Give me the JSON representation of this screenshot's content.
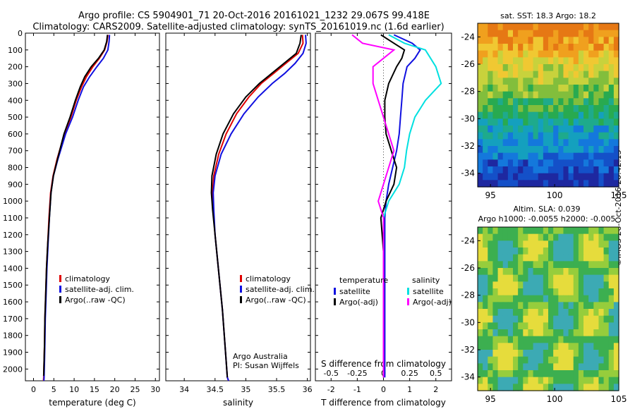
{
  "header": {
    "line1": "Argo profile: CS 5904901_71 20-Oct-2016 20161021_1232 29.067S 99.418E",
    "line2": "Climatology: CARS2009. Satellite-adjusted climatology: synTS_20161019.nc (1.6d earlier)"
  },
  "credit": "©IMOS 26-Oct-2016 20:42:13",
  "colors": {
    "climatology": "#e00000",
    "satellite": "#1010e0",
    "argo": "#000000",
    "sal_satellite": "#00e0e0",
    "sal_argo": "#ff00ff"
  },
  "chart_data": [
    {
      "type": "line",
      "id": "temperature",
      "xlabel": "temperature (deg C)",
      "xlim": [
        -2,
        31
      ],
      "ylim": [
        0,
        2070
      ],
      "xticks": [
        0,
        5,
        10,
        15,
        20,
        25,
        30
      ],
      "yticks": [
        0,
        100,
        200,
        300,
        400,
        500,
        600,
        700,
        800,
        900,
        1000,
        1100,
        1200,
        1300,
        1400,
        1500,
        1600,
        1700,
        1800,
        1900,
        2000
      ],
      "legend": [
        "climatology",
        "satellite-adj. clim.",
        "Argo(..raw -QC)"
      ],
      "series": [
        {
          "name": "climatology",
          "x": [
            18.3,
            18.1,
            17.5,
            16.2,
            14.6,
            13.0,
            11.8,
            10.5,
            9.2,
            7.6,
            5.8,
            4.8,
            4.2,
            3.8,
            3.5,
            3.2,
            3.0,
            2.8,
            2.7,
            2.6,
            2.5,
            2.45
          ],
          "y": [
            10,
            50,
            100,
            150,
            200,
            260,
            320,
            400,
            500,
            600,
            750,
            850,
            950,
            1100,
            1250,
            1400,
            1550,
            1700,
            1850,
            1950,
            2050,
            2070
          ]
        },
        {
          "name": "satellite-adj. clim.",
          "x": [
            18.7,
            18.6,
            18.3,
            17.2,
            15.6,
            13.8,
            12.3,
            11.0,
            9.6,
            7.9,
            6.0,
            4.9,
            4.3,
            3.9,
            3.6,
            3.3,
            3.1,
            2.9,
            2.8,
            2.7,
            2.6,
            2.55
          ],
          "y": [
            10,
            50,
            100,
            150,
            200,
            260,
            320,
            400,
            500,
            600,
            750,
            850,
            950,
            1100,
            1250,
            1400,
            1550,
            1700,
            1850,
            1950,
            2050,
            2070
          ]
        },
        {
          "name": "Argo(..raw -QC)",
          "x": [
            18.2,
            18.0,
            17.4,
            16.0,
            14.2,
            12.6,
            11.5,
            10.3,
            9.0,
            7.5,
            5.9,
            4.9,
            4.3,
            3.9,
            3.5,
            3.2,
            3.0,
            2.8,
            2.7,
            2.6,
            2.5
          ],
          "y": [
            10,
            50,
            100,
            150,
            200,
            260,
            320,
            400,
            500,
            600,
            750,
            850,
            950,
            1100,
            1250,
            1400,
            1550,
            1700,
            1850,
            1950,
            2040
          ]
        }
      ]
    },
    {
      "type": "line",
      "id": "salinity",
      "xlabel": "salinity",
      "xlim": [
        33.7,
        36.05
      ],
      "ylim": [
        0,
        2070
      ],
      "xticks": [
        34,
        34.5,
        35,
        35.5,
        36
      ],
      "xtick_labels": [
        "34",
        "34.5",
        "35",
        "35.5",
        "36"
      ],
      "legend": [
        "climatology",
        "satellite-adj. clim.",
        "Argo(..raw -QC)"
      ],
      "annotation": [
        "Argo Australia",
        "PI: Susan Wijffels"
      ],
      "series": [
        {
          "name": "climatology",
          "x": [
            35.92,
            35.93,
            35.85,
            35.65,
            35.45,
            35.25,
            35.05,
            34.85,
            34.68,
            34.56,
            34.48,
            34.46,
            34.47,
            34.5,
            34.54,
            34.58,
            34.62,
            34.65,
            34.68,
            34.7,
            34.72
          ],
          "y": [
            10,
            60,
            120,
            180,
            240,
            300,
            380,
            480,
            600,
            720,
            850,
            950,
            1050,
            1200,
            1350,
            1500,
            1650,
            1800,
            1950,
            2050,
            2070
          ]
        },
        {
          "name": "satellite-adj. clim.",
          "x": [
            35.97,
            35.98,
            35.93,
            35.8,
            35.63,
            35.43,
            35.2,
            34.97,
            34.76,
            34.6,
            34.5,
            34.47,
            34.48,
            34.5,
            34.54,
            34.58,
            34.62,
            34.65,
            34.68,
            34.7,
            34.72
          ],
          "y": [
            10,
            60,
            120,
            180,
            240,
            300,
            380,
            480,
            600,
            720,
            850,
            950,
            1050,
            1200,
            1350,
            1500,
            1650,
            1800,
            1950,
            2050,
            2070
          ]
        },
        {
          "name": "Argo(..raw -QC)",
          "x": [
            35.9,
            35.88,
            35.82,
            35.62,
            35.42,
            35.22,
            35.0,
            34.8,
            34.63,
            34.52,
            34.45,
            34.44,
            34.46,
            34.5,
            34.54,
            34.58,
            34.62,
            34.65,
            34.68,
            34.7
          ],
          "y": [
            10,
            60,
            120,
            180,
            240,
            300,
            380,
            480,
            600,
            720,
            850,
            950,
            1050,
            1200,
            1350,
            1500,
            1650,
            1800,
            1950,
            2050
          ]
        }
      ]
    },
    {
      "type": "line",
      "id": "difference",
      "xlabel": "T difference from climatology",
      "top_xlabel": "S difference from climatology",
      "xlim": [
        -2.6,
        2.6
      ],
      "ylim": [
        0,
        2070
      ],
      "xticks": [
        -2,
        -1,
        0,
        1,
        2
      ],
      "top_xticks": [
        -0.5,
        -0.25,
        0,
        0.25,
        0.5
      ],
      "top_xtick_labels": [
        "-0.5",
        "-0.25",
        "0",
        "0.25",
        "0.5"
      ],
      "legend_headers": [
        "temperature",
        "salinity"
      ],
      "legend": [
        "satellite",
        "Argo(-adj)",
        "satellite",
        "Argo(-adj)"
      ],
      "series": [
        {
          "name": "satellite",
          "x": [
            0.4,
            1.1,
            1.4,
            1.2,
            0.9,
            0.75,
            0.7,
            0.65,
            0.6,
            0.5,
            0.35,
            0.2,
            0.1,
            0.05,
            0.05,
            0.05,
            0.05,
            0.05,
            0.05,
            0.05
          ],
          "y": [
            10,
            60,
            100,
            150,
            200,
            300,
            400,
            500,
            600,
            700,
            800,
            900,
            1000,
            1100,
            1300,
            1500,
            1700,
            1900,
            2000,
            2050
          ]
        },
        {
          "name": "Argo(-adj)",
          "x": [
            -0.1,
            0.4,
            0.8,
            0.7,
            0.5,
            0.2,
            0.05,
            0.05,
            0.1,
            0.3,
            0.5,
            0.4,
            0.1,
            -0.1,
            0.0,
            0.0,
            0.0,
            0.0,
            0.0,
            0.0
          ],
          "y": [
            10,
            60,
            100,
            150,
            200,
            300,
            400,
            500,
            600,
            700,
            800,
            900,
            1000,
            1100,
            1300,
            1500,
            1700,
            1900,
            2000,
            2050
          ]
        },
        {
          "name": "satellite (salinity)",
          "x": [
            0.05,
            0.2,
            0.4,
            0.45,
            0.5,
            0.55,
            0.4,
            0.3,
            0.25,
            0.22,
            0.2,
            0.15,
            0.05,
            0.0,
            0.0,
            0.0,
            0.0,
            0.0,
            0.0,
            0.0
          ],
          "y": [
            10,
            60,
            100,
            150,
            200,
            300,
            400,
            500,
            600,
            700,
            800,
            900,
            1000,
            1100,
            1300,
            1500,
            1700,
            1900,
            2000,
            2050
          ]
        },
        {
          "name": "Argo(-adj) (salinity)",
          "x": [
            -0.3,
            -0.2,
            0.1,
            0.0,
            -0.1,
            -0.1,
            -0.05,
            0.0,
            0.05,
            0.1,
            0.05,
            0.0,
            -0.05,
            0.0,
            0.0,
            0.0,
            0.0,
            0.0,
            0.0,
            0.0
          ],
          "y": [
            10,
            60,
            100,
            150,
            200,
            300,
            400,
            500,
            600,
            700,
            800,
            900,
            1000,
            1100,
            1300,
            1500,
            1700,
            1900,
            2000,
            2050
          ]
        }
      ]
    },
    {
      "type": "heatmap",
      "id": "sst-map",
      "title": "sat. SST: 18.3 Argo: 18.2",
      "xlim": [
        94,
        105
      ],
      "ylim": [
        -35,
        -23
      ],
      "xticks": [
        95,
        100,
        105
      ],
      "yticks": [
        -24,
        -26,
        -28,
        -30,
        -32,
        -34
      ],
      "ytick_labels": [
        "-24",
        "-26",
        "-28",
        "-30",
        "-32",
        "-34"
      ]
    },
    {
      "type": "heatmap",
      "id": "sla-map",
      "title": [
        "Altim. SLA: 0.039",
        "Argo h1000: -0.0055 h2000: -0.005"
      ],
      "xlim": [
        94,
        105
      ],
      "ylim": [
        -35,
        -23
      ],
      "xticks": [
        95,
        100,
        105
      ],
      "yticks": [
        -24,
        -26,
        -28,
        -30,
        -32,
        -34
      ],
      "ytick_labels": [
        "-24",
        "-26",
        "-28",
        "-30",
        "-32",
        "-34"
      ]
    }
  ]
}
